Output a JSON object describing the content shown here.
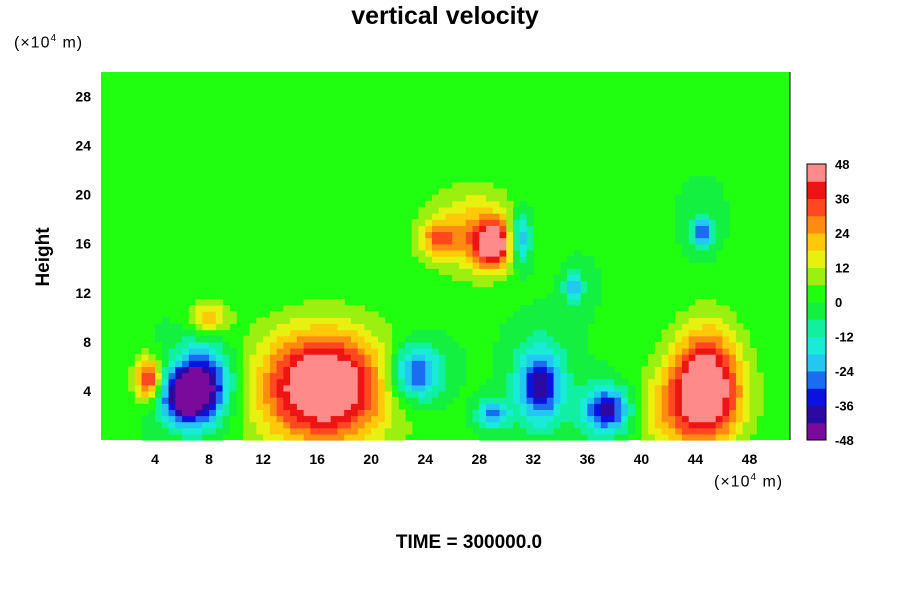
{
  "chart_data": {
    "type": "heatmap",
    "title": "vertical velocity",
    "ylabel": "Height",
    "x_unit": "(×10^4 m)",
    "y_unit": "(×10^4 m)",
    "footer": "TIME = 300000.0",
    "xlim": [
      0,
      51
    ],
    "ylim": [
      0,
      30
    ],
    "x_ticks": [
      4,
      8,
      12,
      16,
      20,
      24,
      28,
      32,
      36,
      40,
      44,
      48
    ],
    "y_ticks": [
      4,
      8,
      12,
      16,
      20,
      24,
      28
    ],
    "colorbar": {
      "range": [
        -48,
        48
      ],
      "ticks": [
        48,
        36,
        24,
        12,
        0,
        -12,
        -24,
        -36,
        -48
      ],
      "colors": [
        "#7a0a9c",
        "#2a0aa0",
        "#0a12e0",
        "#1a6cf0",
        "#22c8f0",
        "#18ecd8",
        "#10f0a0",
        "#14f040",
        "#20ff10",
        "#9cf010",
        "#e8f010",
        "#ffc808",
        "#ff8c10",
        "#ff4820",
        "#ee1414",
        "#ff8a8a"
      ]
    },
    "features": [
      {
        "x": 16.5,
        "y": 4.5,
        "value": 48,
        "sx": 3.0,
        "sy": 3.0
      },
      {
        "x": 16.0,
        "y": 3.5,
        "value": 12,
        "sx": 5.0,
        "sy": 4.5
      },
      {
        "x": 44.8,
        "y": 4.8,
        "value": 48,
        "sx": 1.8,
        "sy": 3.2
      },
      {
        "x": 43.0,
        "y": 2.5,
        "value": 20,
        "sx": 3.0,
        "sy": 2.5
      },
      {
        "x": 3.5,
        "y": 5.0,
        "value": 40,
        "sx": 0.7,
        "sy": 1.2
      },
      {
        "x": 29.0,
        "y": 16.0,
        "value": 44,
        "sx": 1.0,
        "sy": 1.3
      },
      {
        "x": 27.5,
        "y": 17.0,
        "value": 22,
        "sx": 2.5,
        "sy": 2.5
      },
      {
        "x": 25.0,
        "y": 16.5,
        "value": 20,
        "sx": 1.0,
        "sy": 1.0
      },
      {
        "x": 8.0,
        "y": 10.0,
        "value": 22,
        "sx": 1.0,
        "sy": 1.0
      },
      {
        "x": 7.5,
        "y": 4.5,
        "value": -48,
        "sx": 1.5,
        "sy": 2.2
      },
      {
        "x": 6.0,
        "y": 3.5,
        "value": -36,
        "sx": 1.2,
        "sy": 1.5
      },
      {
        "x": 23.3,
        "y": 5.5,
        "value": -36,
        "sx": 1.4,
        "sy": 1.6
      },
      {
        "x": 32.5,
        "y": 4.5,
        "value": -40,
        "sx": 1.2,
        "sy": 2.2
      },
      {
        "x": 37.5,
        "y": 2.5,
        "value": -42,
        "sx": 1.3,
        "sy": 1.4
      },
      {
        "x": 31.0,
        "y": 16.5,
        "value": -32,
        "sx": 0.6,
        "sy": 1.5
      },
      {
        "x": 44.5,
        "y": 17.0,
        "value": -30,
        "sx": 0.5,
        "sy": 0.9
      },
      {
        "x": 35.0,
        "y": 12.5,
        "value": -22,
        "sx": 0.5,
        "sy": 0.9
      },
      {
        "x": 29.0,
        "y": 2.2,
        "value": -28,
        "sx": 0.8,
        "sy": 0.8
      }
    ]
  }
}
